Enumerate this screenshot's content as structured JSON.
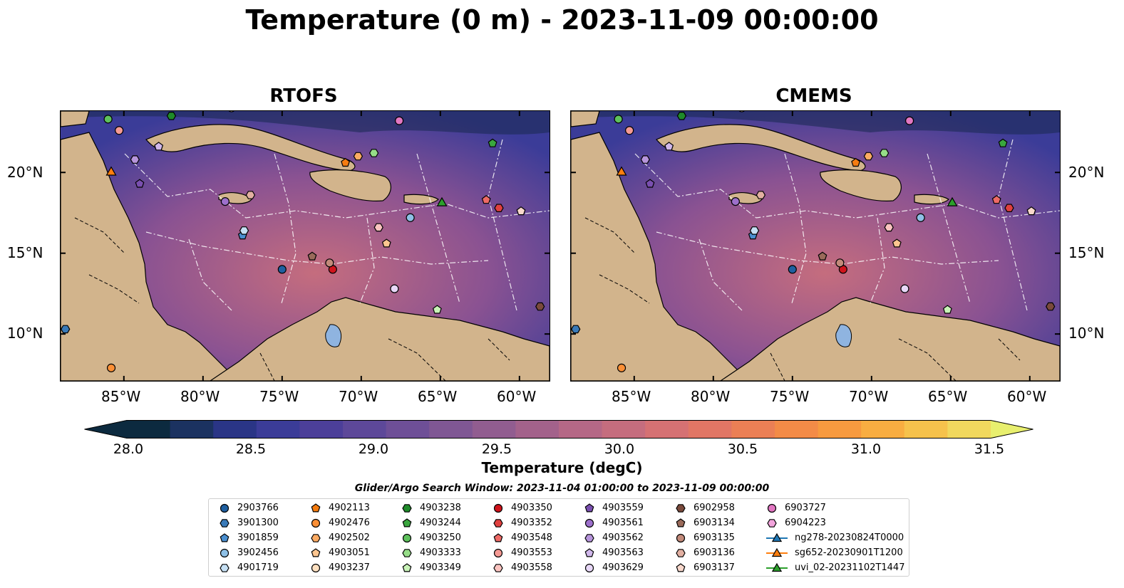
{
  "title": "Temperature (0 m) - 2023-11-09 00:00:00",
  "panels": [
    {
      "title": "RTOFS"
    },
    {
      "title": "CMEMS"
    }
  ],
  "axes": {
    "lat_ticks": [
      "20°N",
      "15°N",
      "10°N"
    ],
    "lon_ticks": [
      "85°W",
      "80°W",
      "75°W",
      "70°W",
      "65°W",
      "60°W"
    ]
  },
  "colorbar": {
    "label": "Temperature (degC)",
    "ticks": [
      "28.0",
      "28.5",
      "29.0",
      "29.5",
      "30.0",
      "30.5",
      "31.0",
      "31.5"
    ],
    "range": [
      28.0,
      31.5
    ],
    "colors": [
      "#0c2a3f",
      "#1b3260",
      "#2a3586",
      "#3b3c98",
      "#4c3f99",
      "#5d4899",
      "#6e4f97",
      "#7f5794",
      "#915d90",
      "#a3628b",
      "#b56886",
      "#c56d7e",
      "#d57173",
      "#e17665",
      "#eb7f55",
      "#f38b47",
      "#f79a3f",
      "#f8ad41",
      "#f6c24c",
      "#f1d85e",
      "#e8ef6e"
    ]
  },
  "search_window": "Glider/Argo Search Window: 2023-11-04 01:00:00 to 2023-11-09 00:00:00",
  "legend": [
    {
      "label": "2903766",
      "marker": "circle",
      "color": "#1f5fa0"
    },
    {
      "label": "3901300",
      "marker": "hexagon",
      "color": "#3a7ab8"
    },
    {
      "label": "3901859",
      "marker": "pentagon",
      "color": "#4a8fd0"
    },
    {
      "label": "3902456",
      "marker": "circle",
      "color": "#8ec0e6"
    },
    {
      "label": "4901719",
      "marker": "hexagon",
      "color": "#c6e0f4"
    },
    {
      "label": "4902113",
      "marker": "pentagon",
      "color": "#f57c10"
    },
    {
      "label": "4902476",
      "marker": "circle",
      "color": "#fb8f35"
    },
    {
      "label": "4902502",
      "marker": "hexagon",
      "color": "#fcab63"
    },
    {
      "label": "4903051",
      "marker": "pentagon",
      "color": "#fdc690"
    },
    {
      "label": "4903237",
      "marker": "circle",
      "color": "#fde0c0"
    },
    {
      "label": "4903238",
      "marker": "hexagon",
      "color": "#1f8a2a"
    },
    {
      "label": "4903244",
      "marker": "pentagon",
      "color": "#3aa63e"
    },
    {
      "label": "4903250",
      "marker": "circle",
      "color": "#5ec15c"
    },
    {
      "label": "4903333",
      "marker": "hexagon",
      "color": "#96dd88"
    },
    {
      "label": "4903349",
      "marker": "pentagon",
      "color": "#c9f3b8"
    },
    {
      "label": "4903350",
      "marker": "circle",
      "color": "#d0141c"
    },
    {
      "label": "4903352",
      "marker": "hexagon",
      "color": "#e0403f"
    },
    {
      "label": "4903548",
      "marker": "pentagon",
      "color": "#ee6a66"
    },
    {
      "label": "4903553",
      "marker": "circle",
      "color": "#f59a94"
    },
    {
      "label": "4903558",
      "marker": "hexagon",
      "color": "#fbc4c0"
    },
    {
      "label": "4903559",
      "marker": "pentagon",
      "color": "#7a4fb0"
    },
    {
      "label": "4903561",
      "marker": "circle",
      "color": "#9d70cc"
    },
    {
      "label": "4903562",
      "marker": "hexagon",
      "color": "#b795dc"
    },
    {
      "label": "4903563",
      "marker": "pentagon",
      "color": "#d1b8ec"
    },
    {
      "label": "4903629",
      "marker": "circle",
      "color": "#e8d8f8"
    },
    {
      "label": "6902958",
      "marker": "hexagon",
      "color": "#7a4a3c"
    },
    {
      "label": "6903134",
      "marker": "pentagon",
      "color": "#9a6a5a"
    },
    {
      "label": "6903135",
      "marker": "circle",
      "color": "#c28a7a"
    },
    {
      "label": "6903136",
      "marker": "hexagon",
      "color": "#e2b0a2"
    },
    {
      "label": "6903137",
      "marker": "pentagon",
      "color": "#f8d8cc"
    },
    {
      "label": "6903727",
      "marker": "circle",
      "color": "#e277c2"
    },
    {
      "label": "6904223",
      "marker": "hexagon",
      "color": "#f2a4dc"
    },
    {
      "label": "ng278-20230824T0000",
      "marker": "triangle-line",
      "color": "#1f77b4"
    },
    {
      "label": "sg652-20230901T1200",
      "marker": "triangle-line",
      "color": "#ff7f0e"
    },
    {
      "label": "uvi_02-20231102T1447",
      "marker": "triangle-line",
      "color": "#2ca02c"
    }
  ],
  "colors": {
    "land": "#d2b48c",
    "ocean_mid": "#8a5292",
    "ocean_warm": "#c56d7e",
    "ocean_cool": "#3b3c98",
    "lake": "#8fb4e0"
  }
}
